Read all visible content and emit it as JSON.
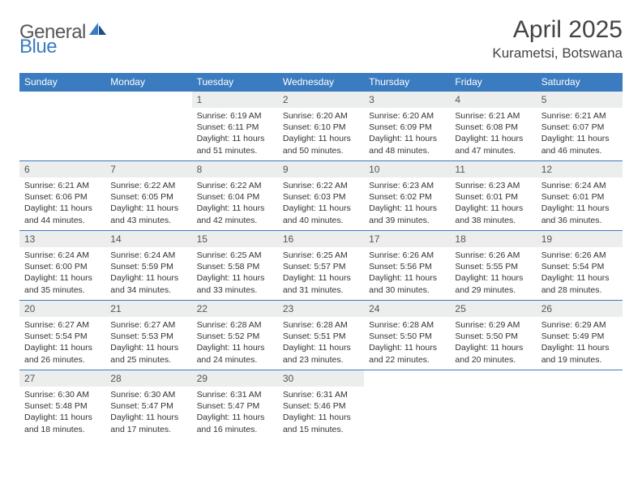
{
  "brand": {
    "part1": "General",
    "part2": "Blue"
  },
  "title": "April 2025",
  "location": "Kurametsi, Botswana",
  "colors": {
    "header_bg": "#3b7bbf",
    "header_text": "#ffffff",
    "daynum_bg": "#eceded",
    "border": "#3b7bbf",
    "text": "#333333",
    "brand_gray": "#565656",
    "brand_blue": "#3b7bbf",
    "page_bg": "#ffffff"
  },
  "weekdays": [
    "Sunday",
    "Monday",
    "Tuesday",
    "Wednesday",
    "Thursday",
    "Friday",
    "Saturday"
  ],
  "weeks": [
    [
      null,
      null,
      {
        "n": "1",
        "sunrise": "6:19 AM",
        "sunset": "6:11 PM",
        "daylight": "11 hours and 51 minutes."
      },
      {
        "n": "2",
        "sunrise": "6:20 AM",
        "sunset": "6:10 PM",
        "daylight": "11 hours and 50 minutes."
      },
      {
        "n": "3",
        "sunrise": "6:20 AM",
        "sunset": "6:09 PM",
        "daylight": "11 hours and 48 minutes."
      },
      {
        "n": "4",
        "sunrise": "6:21 AM",
        "sunset": "6:08 PM",
        "daylight": "11 hours and 47 minutes."
      },
      {
        "n": "5",
        "sunrise": "6:21 AM",
        "sunset": "6:07 PM",
        "daylight": "11 hours and 46 minutes."
      }
    ],
    [
      {
        "n": "6",
        "sunrise": "6:21 AM",
        "sunset": "6:06 PM",
        "daylight": "11 hours and 44 minutes."
      },
      {
        "n": "7",
        "sunrise": "6:22 AM",
        "sunset": "6:05 PM",
        "daylight": "11 hours and 43 minutes."
      },
      {
        "n": "8",
        "sunrise": "6:22 AM",
        "sunset": "6:04 PM",
        "daylight": "11 hours and 42 minutes."
      },
      {
        "n": "9",
        "sunrise": "6:22 AM",
        "sunset": "6:03 PM",
        "daylight": "11 hours and 40 minutes."
      },
      {
        "n": "10",
        "sunrise": "6:23 AM",
        "sunset": "6:02 PM",
        "daylight": "11 hours and 39 minutes."
      },
      {
        "n": "11",
        "sunrise": "6:23 AM",
        "sunset": "6:01 PM",
        "daylight": "11 hours and 38 minutes."
      },
      {
        "n": "12",
        "sunrise": "6:24 AM",
        "sunset": "6:01 PM",
        "daylight": "11 hours and 36 minutes."
      }
    ],
    [
      {
        "n": "13",
        "sunrise": "6:24 AM",
        "sunset": "6:00 PM",
        "daylight": "11 hours and 35 minutes."
      },
      {
        "n": "14",
        "sunrise": "6:24 AM",
        "sunset": "5:59 PM",
        "daylight": "11 hours and 34 minutes."
      },
      {
        "n": "15",
        "sunrise": "6:25 AM",
        "sunset": "5:58 PM",
        "daylight": "11 hours and 33 minutes."
      },
      {
        "n": "16",
        "sunrise": "6:25 AM",
        "sunset": "5:57 PM",
        "daylight": "11 hours and 31 minutes."
      },
      {
        "n": "17",
        "sunrise": "6:26 AM",
        "sunset": "5:56 PM",
        "daylight": "11 hours and 30 minutes."
      },
      {
        "n": "18",
        "sunrise": "6:26 AM",
        "sunset": "5:55 PM",
        "daylight": "11 hours and 29 minutes."
      },
      {
        "n": "19",
        "sunrise": "6:26 AM",
        "sunset": "5:54 PM",
        "daylight": "11 hours and 28 minutes."
      }
    ],
    [
      {
        "n": "20",
        "sunrise": "6:27 AM",
        "sunset": "5:54 PM",
        "daylight": "11 hours and 26 minutes."
      },
      {
        "n": "21",
        "sunrise": "6:27 AM",
        "sunset": "5:53 PM",
        "daylight": "11 hours and 25 minutes."
      },
      {
        "n": "22",
        "sunrise": "6:28 AM",
        "sunset": "5:52 PM",
        "daylight": "11 hours and 24 minutes."
      },
      {
        "n": "23",
        "sunrise": "6:28 AM",
        "sunset": "5:51 PM",
        "daylight": "11 hours and 23 minutes."
      },
      {
        "n": "24",
        "sunrise": "6:28 AM",
        "sunset": "5:50 PM",
        "daylight": "11 hours and 22 minutes."
      },
      {
        "n": "25",
        "sunrise": "6:29 AM",
        "sunset": "5:50 PM",
        "daylight": "11 hours and 20 minutes."
      },
      {
        "n": "26",
        "sunrise": "6:29 AM",
        "sunset": "5:49 PM",
        "daylight": "11 hours and 19 minutes."
      }
    ],
    [
      {
        "n": "27",
        "sunrise": "6:30 AM",
        "sunset": "5:48 PM",
        "daylight": "11 hours and 18 minutes."
      },
      {
        "n": "28",
        "sunrise": "6:30 AM",
        "sunset": "5:47 PM",
        "daylight": "11 hours and 17 minutes."
      },
      {
        "n": "29",
        "sunrise": "6:31 AM",
        "sunset": "5:47 PM",
        "daylight": "11 hours and 16 minutes."
      },
      {
        "n": "30",
        "sunrise": "6:31 AM",
        "sunset": "5:46 PM",
        "daylight": "11 hours and 15 minutes."
      },
      null,
      null,
      null
    ]
  ],
  "labels": {
    "sunrise": "Sunrise:",
    "sunset": "Sunset:",
    "daylight": "Daylight:"
  }
}
